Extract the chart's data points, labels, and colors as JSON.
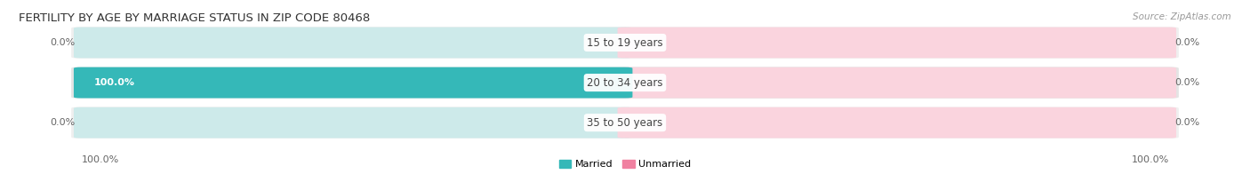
{
  "title": "FERTILITY BY AGE BY MARRIAGE STATUS IN ZIP CODE 80468",
  "source": "Source: ZipAtlas.com",
  "categories": [
    "15 to 19 years",
    "20 to 34 years",
    "35 to 50 years"
  ],
  "married_values": [
    0.0,
    100.0,
    0.0
  ],
  "unmarried_values": [
    0.0,
    0.0,
    0.0
  ],
  "married_color": "#35b8b8",
  "unmarried_color": "#f080a0",
  "married_bg_color": "#cdeaea",
  "unmarried_bg_color": "#fad4de",
  "row_bg_color_odd": "#efefef",
  "row_bg_color_even": "#e4e4e4",
  "title_fontsize": 9.5,
  "source_fontsize": 7.5,
  "value_fontsize": 8,
  "category_fontsize": 8.5,
  "legend_married": "Married",
  "legend_unmarried": "Unmarried",
  "bottom_left_label": "100.0%",
  "bottom_right_label": "100.0%",
  "married_label_color": "#ffffff",
  "value_label_color": "#666666"
}
